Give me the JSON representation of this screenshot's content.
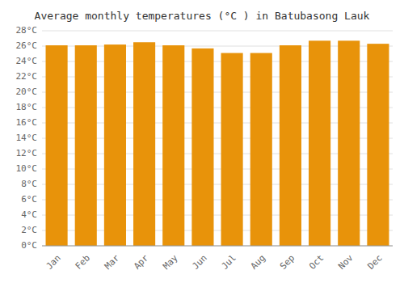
{
  "chart_data": {
    "type": "bar",
    "title": "Average monthly temperatures (°C ) in Batubasong Lauk",
    "categories": [
      "Jan",
      "Feb",
      "Mar",
      "Apr",
      "May",
      "Jun",
      "Jul",
      "Aug",
      "Sep",
      "Oct",
      "Nov",
      "Dec"
    ],
    "values": [
      26.1,
      26.1,
      26.2,
      26.5,
      26.1,
      25.7,
      25.1,
      25.1,
      26.1,
      26.7,
      26.7,
      26.3
    ],
    "color": "#E8930A",
    "ylim": [
      0,
      28
    ],
    "yticks": [
      {
        "value": 0,
        "label": "0°C"
      },
      {
        "value": 2,
        "label": "2°C"
      },
      {
        "value": 4,
        "label": "4°C"
      },
      {
        "value": 6,
        "label": "6°C"
      },
      {
        "value": 8,
        "label": "8°C"
      },
      {
        "value": 10,
        "label": "10°C"
      },
      {
        "value": 12,
        "label": "12°C"
      },
      {
        "value": 14,
        "label": "14°C"
      },
      {
        "value": 16,
        "label": "16°C"
      },
      {
        "value": 18,
        "label": "18°C"
      },
      {
        "value": 20,
        "label": "20°C"
      },
      {
        "value": 22,
        "label": "22°C"
      },
      {
        "value": 24,
        "label": "24°C"
      },
      {
        "value": 26,
        "label": "26°C"
      },
      {
        "value": 28,
        "label": "28°C"
      }
    ],
    "grid": true
  }
}
